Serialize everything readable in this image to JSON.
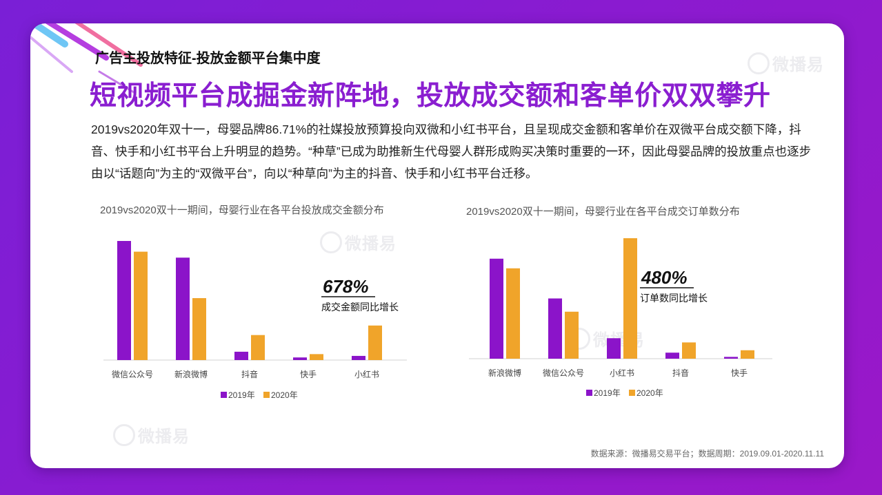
{
  "header": {
    "label": "广告主投放特征-投放金额平台集中度"
  },
  "headline": "短视频平台成掘金新阵地，投放成交额和客单价双双攀升",
  "body": "2019vs2020年双十一，母婴品牌86.71%的社媒投放预算投向双微和小红书平台，且呈现成交金额和客单价在双微平台成交额下降，抖音、快手和小红书平台上升明显的趋势。“种草”已成为助推新生代母婴人群形成购买决策时重要的一环，因此母婴品牌的投放重点也逐步由以“话题向”为主的“双微平台”，向以“种草向”为主的抖音、快手和小红书平台迁移。",
  "watermark": "微播易",
  "colors": {
    "s2019": "#8b14c9",
    "s2020": "#f0a42a",
    "accent": "#8a1ed0"
  },
  "chart_data": [
    {
      "type": "bar",
      "title": "2019vs2020双十一期间，母婴行业在各平台投放成交金额分布",
      "categories": [
        "微信公众号",
        "新浪微博",
        "抖音",
        "快手",
        "小红书"
      ],
      "series": [
        {
          "name": "2019年",
          "values": [
            100,
            86,
            7,
            2.2,
            3.5
          ]
        },
        {
          "name": "2020年",
          "values": [
            91,
            52,
            21,
            5,
            29
          ]
        }
      ],
      "ylim": [
        0,
        100
      ],
      "annotation": {
        "value": "678%",
        "label": "成交金额同比增长"
      },
      "legend": "bottom"
    },
    {
      "type": "bar",
      "title": "2019vs2020双十一期间，母婴行业在各平台成交订单数分布",
      "categories": [
        "新浪微博",
        "微信公众号",
        "小红书",
        "抖音",
        "快手"
      ],
      "series": [
        {
          "name": "2019年",
          "values": [
            83,
            50,
            17,
            5,
            1.5
          ]
        },
        {
          "name": "2020年",
          "values": [
            75,
            39,
            100,
            13.5,
            7
          ]
        }
      ],
      "ylim": [
        0,
        100
      ],
      "annotation": {
        "value": "480%",
        "label": "订单数同比增长"
      },
      "legend": "bottom"
    }
  ],
  "source": "数据来源：微播易交易平台；数据周期：2019.09.01-2020.11.11"
}
